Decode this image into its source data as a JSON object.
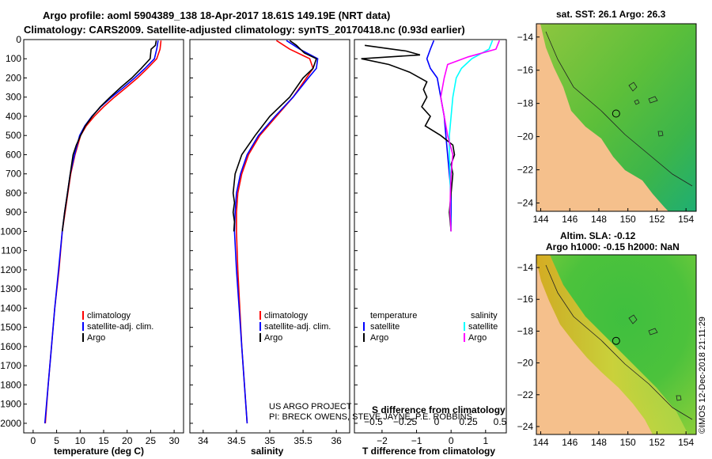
{
  "header": {
    "title_line1": "Argo profile: aoml 5904389_138 18-Apr-2017 18.61S 149.19E (NRT data)",
    "title_line2": "Climatology: CARS2009. Satellite-adjusted climatology: synTS_20170418.nc (0.93d earlier)"
  },
  "credit": {
    "line1": "US ARGO PROJECT",
    "line2": "PI: BRECK OWENS, STEVE JAYNE, P.E. ROBBINS"
  },
  "side_note": "©IMOS 12-Dec-2018 21:11:29",
  "colors": {
    "climatology": "#ff0000",
    "satellite": "#0000ff",
    "argo": "#000000",
    "salinity_satellite": "#00ffff",
    "salinity_argo": "#ff00ff",
    "land": "#f5c08c"
  },
  "chart_data": [
    {
      "id": "temperature",
      "type": "line",
      "xlabel": "temperature (deg C)",
      "ylabel": "",
      "xlim": [
        -2,
        32
      ],
      "ylim": [
        2050,
        0
      ],
      "xticks": [
        0,
        5,
        10,
        15,
        20,
        25,
        30
      ],
      "yticks": [
        0,
        100,
        200,
        300,
        400,
        500,
        600,
        700,
        800,
        900,
        1000,
        1100,
        1200,
        1300,
        1400,
        1500,
        1600,
        1700,
        1800,
        1900,
        2000
      ],
      "legend": [
        "climatology",
        "satellite-adj. clim.",
        "Argo"
      ],
      "series": [
        {
          "name": "climatology",
          "color_key": "climatology",
          "points": [
            [
              27.2,
              5
            ],
            [
              27.0,
              50
            ],
            [
              26.3,
              100
            ],
            [
              24.3,
              150
            ],
            [
              22.2,
              200
            ],
            [
              19.8,
              250
            ],
            [
              17.3,
              300
            ],
            [
              15.0,
              350
            ],
            [
              13.0,
              400
            ],
            [
              11.3,
              450
            ],
            [
              10.1,
              500
            ],
            [
              8.9,
              600
            ],
            [
              8.0,
              700
            ],
            [
              7.4,
              800
            ],
            [
              6.8,
              900
            ],
            [
              6.2,
              1000
            ],
            [
              5.5,
              1200
            ],
            [
              4.6,
              1400
            ],
            [
              3.9,
              1600
            ],
            [
              3.2,
              1800
            ],
            [
              2.6,
              2000
            ]
          ]
        },
        {
          "name": "satellite-adj. clim.",
          "color_key": "satellite",
          "points": [
            [
              26.6,
              5
            ],
            [
              26.3,
              50
            ],
            [
              25.8,
              100
            ],
            [
              23.8,
              150
            ],
            [
              21.6,
              200
            ],
            [
              19.2,
              250
            ],
            [
              16.7,
              300
            ],
            [
              14.4,
              350
            ],
            [
              12.5,
              400
            ],
            [
              11.0,
              450
            ],
            [
              9.9,
              500
            ],
            [
              8.8,
              600
            ],
            [
              7.9,
              700
            ],
            [
              7.3,
              800
            ],
            [
              6.7,
              900
            ],
            [
              6.2,
              1000
            ],
            [
              5.4,
              1200
            ],
            [
              4.6,
              1400
            ],
            [
              3.9,
              1600
            ],
            [
              3.2,
              1800
            ],
            [
              2.5,
              2000
            ]
          ]
        },
        {
          "name": "Argo",
          "color_key": "argo",
          "points": [
            [
              26.2,
              5
            ],
            [
              26.0,
              30
            ],
            [
              25.1,
              50
            ],
            [
              24.9,
              100
            ],
            [
              23.0,
              150
            ],
            [
              21.0,
              200
            ],
            [
              18.6,
              250
            ],
            [
              16.4,
              300
            ],
            [
              14.3,
              350
            ],
            [
              12.6,
              400
            ],
            [
              11.1,
              450
            ],
            [
              10.1,
              500
            ],
            [
              9.2,
              550
            ],
            [
              8.5,
              600
            ],
            [
              7.9,
              700
            ],
            [
              7.3,
              800
            ],
            [
              6.7,
              900
            ],
            [
              6.2,
              1000
            ]
          ]
        }
      ]
    },
    {
      "id": "salinity",
      "type": "line",
      "xlabel": "salinity",
      "xlim": [
        33.8,
        36.2
      ],
      "ylim": [
        2050,
        0
      ],
      "xticks": [
        34,
        34.5,
        35,
        35.5,
        36
      ],
      "legend": [
        "climatology",
        "satellite-adj. clim.",
        "Argo"
      ],
      "series": [
        {
          "name": "climatology",
          "color_key": "climatology",
          "points": [
            [
              35.1,
              5
            ],
            [
              35.3,
              50
            ],
            [
              35.6,
              100
            ],
            [
              35.65,
              150
            ],
            [
              35.55,
              200
            ],
            [
              35.35,
              300
            ],
            [
              35.1,
              400
            ],
            [
              34.85,
              500
            ],
            [
              34.68,
              600
            ],
            [
              34.58,
              700
            ],
            [
              34.52,
              800
            ],
            [
              34.5,
              900
            ],
            [
              34.5,
              1000
            ],
            [
              34.52,
              1200
            ],
            [
              34.55,
              1400
            ],
            [
              34.58,
              1600
            ],
            [
              34.62,
              1800
            ],
            [
              34.66,
              2000
            ]
          ]
        },
        {
          "name": "satellite-adj. clim.",
          "color_key": "satellite",
          "points": [
            [
              35.25,
              5
            ],
            [
              35.45,
              50
            ],
            [
              35.72,
              100
            ],
            [
              35.7,
              150
            ],
            [
              35.58,
              200
            ],
            [
              35.35,
              300
            ],
            [
              35.08,
              400
            ],
            [
              34.83,
              500
            ],
            [
              34.66,
              600
            ],
            [
              34.56,
              700
            ],
            [
              34.5,
              800
            ],
            [
              34.48,
              900
            ],
            [
              34.47,
              1000
            ],
            [
              34.5,
              1200
            ],
            [
              34.54,
              1400
            ],
            [
              34.58,
              1600
            ],
            [
              34.62,
              1800
            ],
            [
              34.66,
              2000
            ]
          ]
        },
        {
          "name": "Argo",
          "color_key": "argo",
          "points": [
            [
              35.3,
              5
            ],
            [
              35.4,
              30
            ],
            [
              35.52,
              70
            ],
            [
              35.7,
              100
            ],
            [
              35.65,
              150
            ],
            [
              35.5,
              200
            ],
            [
              35.3,
              300
            ],
            [
              35.0,
              400
            ],
            [
              34.78,
              500
            ],
            [
              34.58,
              600
            ],
            [
              34.48,
              700
            ],
            [
              34.45,
              800
            ],
            [
              34.47,
              850
            ],
            [
              34.45,
              900
            ],
            [
              34.47,
              950
            ],
            [
              34.46,
              1000
            ]
          ]
        }
      ]
    },
    {
      "id": "difference",
      "type": "line",
      "xlabel": "T difference from climatology",
      "top_label": "S difference from climatology",
      "xlim": [
        -2.8,
        1.6
      ],
      "ylim": [
        2050,
        0
      ],
      "xticks": [
        -2,
        -1,
        0,
        1
      ],
      "top_ticks": [
        -0.5,
        -0.25,
        0,
        0.25,
        0.5
      ],
      "legend_temperature_title": "temperature",
      "legend_salinity_title": "salinity",
      "legend": [
        "satellite",
        "Argo",
        "satellite",
        "Argo"
      ],
      "series": [
        {
          "name": "temperature satellite",
          "color_key": "satellite",
          "points": [
            [
              -0.5,
              5
            ],
            [
              -0.6,
              50
            ],
            [
              -0.7,
              100
            ],
            [
              -0.6,
              150
            ],
            [
              -0.4,
              200
            ],
            [
              -0.3,
              300
            ],
            [
              -0.2,
              400
            ],
            [
              -0.15,
              500
            ],
            [
              -0.1,
              600
            ],
            [
              -0.05,
              700
            ],
            [
              0,
              800
            ],
            [
              0,
              900
            ],
            [
              0,
              1000
            ]
          ]
        },
        {
          "name": "temperature Argo",
          "color_key": "argo",
          "points": [
            [
              -2.5,
              30
            ],
            [
              -1.3,
              60
            ],
            [
              -0.9,
              80
            ],
            [
              -2.6,
              100
            ],
            [
              -1.8,
              130
            ],
            [
              -1.2,
              170
            ],
            [
              -0.7,
              220
            ],
            [
              -0.8,
              260
            ],
            [
              -0.7,
              300
            ],
            [
              -0.85,
              350
            ],
            [
              -0.6,
              400
            ],
            [
              -0.75,
              450
            ],
            [
              -0.3,
              500
            ],
            [
              0.05,
              550
            ],
            [
              0.1,
              600
            ],
            [
              0,
              650
            ],
            [
              0.05,
              700
            ],
            [
              0,
              800
            ],
            [
              -0.05,
              900
            ],
            [
              0,
              1000
            ]
          ]
        },
        {
          "name": "salinity satellite",
          "color_key": "salinity_satellite",
          "points": [
            [
              1.2,
              5
            ],
            [
              1.1,
              50
            ],
            [
              0.6,
              100
            ],
            [
              0.3,
              150
            ],
            [
              0.15,
              200
            ],
            [
              0.05,
              300
            ],
            [
              0,
              400
            ],
            [
              -0.05,
              500
            ],
            [
              -0.05,
              600
            ],
            [
              -0.03,
              700
            ],
            [
              -0.02,
              800
            ],
            [
              -0.02,
              900
            ],
            [
              0,
              1000
            ]
          ]
        },
        {
          "name": "salinity Argo",
          "color_key": "salinity_argo",
          "points": [
            [
              1.4,
              5
            ],
            [
              1.3,
              50
            ],
            [
              0.5,
              90
            ],
            [
              -0.1,
              130
            ],
            [
              -0.2,
              200
            ],
            [
              -0.3,
              300
            ],
            [
              -0.2,
              400
            ],
            [
              -0.1,
              500
            ],
            [
              0.05,
              600
            ],
            [
              0,
              700
            ],
            [
              -0.02,
              800
            ],
            [
              -0.03,
              900
            ],
            [
              0,
              1000
            ]
          ]
        }
      ]
    }
  ],
  "maps": {
    "sst": {
      "title": "sat. SST: 26.1 Argo: 26.3",
      "xticks": [
        144,
        146,
        148,
        150,
        152,
        154
      ],
      "yticks": [
        -14,
        -16,
        -18,
        -20,
        -22,
        -24
      ],
      "xlim": [
        143.7,
        154.7
      ],
      "ylim": [
        -24.5,
        -13.2
      ],
      "profile_location": [
        149.19,
        -18.61
      ]
    },
    "sla": {
      "title_line1": "Altim. SLA: -0.12",
      "title_line2": "Argo h1000: -0.15 h2000: NaN",
      "xticks": [
        144,
        146,
        148,
        150,
        152,
        154
      ],
      "yticks": [
        -14,
        -16,
        -18,
        -20,
        -22,
        -24
      ],
      "xlim": [
        143.7,
        154.7
      ],
      "ylim": [
        -24.5,
        -13.2
      ],
      "profile_location": [
        149.19,
        -18.61
      ]
    }
  }
}
